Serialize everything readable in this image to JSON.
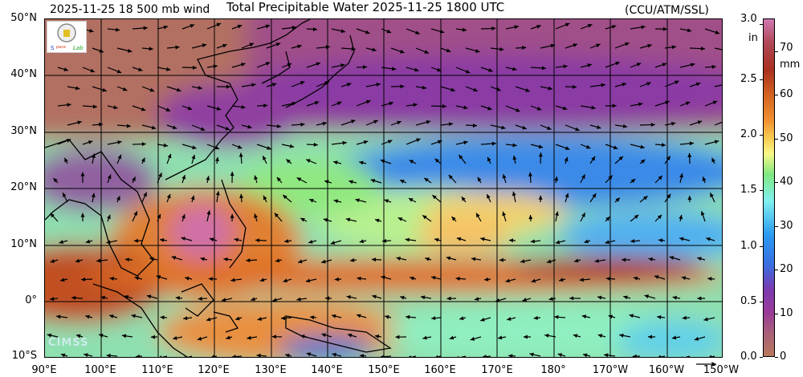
{
  "header": {
    "wind_label": "2025-11-25 18 500 mb wind",
    "title": "Total Precipitable Water  2025-11-25 1800 UTC",
    "credit": "(CCU/ATM/SSL)"
  },
  "axes": {
    "lat_labels": [
      "50°N",
      "40°N",
      "30°N",
      "20°N",
      "10°N",
      "0°",
      "10°S"
    ],
    "lon_labels": [
      "90°E",
      "100°E",
      "110°E",
      "120°E",
      "130°E",
      "140°E",
      "150°E",
      "160°E",
      "170°E",
      "180°",
      "170°W",
      "160°W",
      "150°W"
    ]
  },
  "colorbar": {
    "in_unit": "in",
    "mm_unit": "mm",
    "in_ticks": [
      "3.0",
      "2.5",
      "2.0",
      "1.5",
      "1.0",
      "0.5",
      "0.0"
    ],
    "mm_ticks": [
      "70",
      "60",
      "50",
      "40",
      "30",
      "20",
      "10",
      "0"
    ],
    "in_values": [
      3.0,
      2.5,
      2.0,
      1.5,
      1.0,
      0.5,
      0.0
    ],
    "mm_values": [
      70,
      60,
      50,
      40,
      30,
      20,
      10,
      0
    ],
    "in_max": 3.05,
    "mm_max": 77.5
  },
  "logos": {
    "top_left": "Space Science Lab",
    "bottom_left": "CIMSS"
  }
}
